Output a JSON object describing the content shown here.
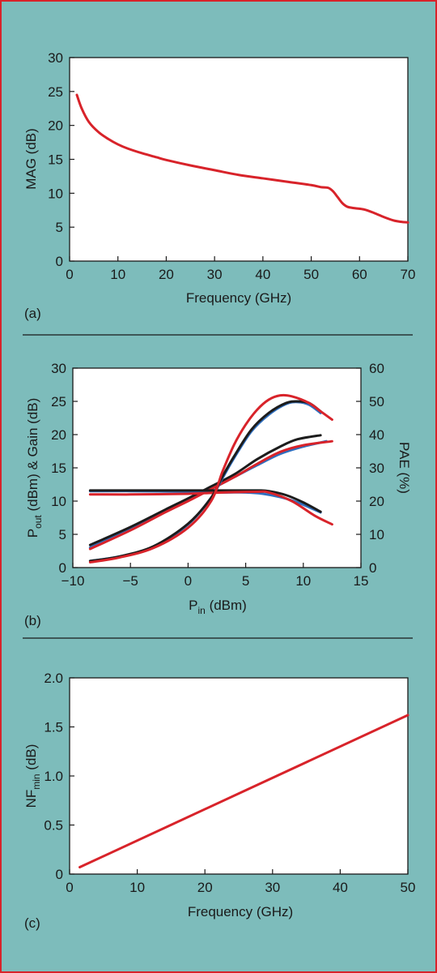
{
  "colors": {
    "background": "#7dbcbb",
    "frame": "#d8232a",
    "red": "#d8232a",
    "black": "#1c1c1c",
    "blue": "#2f6fbf",
    "plot_bg": "#ffffff"
  },
  "chart_data": [
    {
      "id": "a",
      "type": "line",
      "panel_label": "(a)",
      "xlabel": "Frequency (GHz)",
      "ylabel": "MAG (dB)",
      "xlim": [
        0,
        70
      ],
      "ylim": [
        0,
        30
      ],
      "xticks": [
        "0",
        "10",
        "20",
        "30",
        "40",
        "50",
        "60",
        "70"
      ],
      "yticks": [
        "0",
        "5",
        "10",
        "15",
        "20",
        "25",
        "30"
      ],
      "grid": false,
      "series": [
        {
          "color": "red",
          "points": [
            [
              1.5,
              24.5
            ],
            [
              2.5,
              22.5
            ],
            [
              4,
              20.5
            ],
            [
              6,
              19
            ],
            [
              8,
              18
            ],
            [
              10,
              17.2
            ],
            [
              12,
              16.6
            ],
            [
              15,
              15.9
            ],
            [
              18,
              15.3
            ],
            [
              20,
              14.9
            ],
            [
              25,
              14.1
            ],
            [
              30,
              13.4
            ],
            [
              35,
              12.7
            ],
            [
              40,
              12.2
            ],
            [
              45,
              11.7
            ],
            [
              50,
              11.2
            ],
            [
              52,
              10.9
            ],
            [
              53.5,
              10.8
            ],
            [
              54.5,
              10.3
            ],
            [
              55.5,
              9.4
            ],
            [
              56.5,
              8.5
            ],
            [
              57.5,
              8.0
            ],
            [
              59,
              7.8
            ],
            [
              61,
              7.6
            ],
            [
              63,
              7.1
            ],
            [
              65,
              6.5
            ],
            [
              67,
              6.0
            ],
            [
              68.5,
              5.8
            ],
            [
              70,
              5.7
            ]
          ]
        }
      ]
    },
    {
      "id": "b",
      "type": "line",
      "panel_label": "(b)",
      "xlabel_main": "P",
      "xlabel_sub": "in",
      "xlabel_rest": " (dBm)",
      "ylabel_parts": [
        "P",
        "out",
        " (dBm) & Gain (dB)"
      ],
      "y2label": "PAE (%)",
      "xlim": [
        -10,
        15
      ],
      "ylim": [
        0,
        30
      ],
      "y2lim": [
        0,
        60
      ],
      "xticks": [
        "−10",
        "−5",
        "0",
        "5",
        "10",
        "15"
      ],
      "yticks": [
        "0",
        "5",
        "10",
        "15",
        "20",
        "25",
        "30"
      ],
      "y2ticks": [
        "0",
        "10",
        "20",
        "30",
        "40",
        "50",
        "60"
      ],
      "grid": false,
      "series": [
        {
          "color": "blue",
          "group": "pout",
          "points": [
            [
              -8.5,
              3.0
            ],
            [
              -5,
              5.8
            ],
            [
              -2,
              8.4
            ],
            [
              0,
              10.1
            ],
            [
              2,
              11.8
            ],
            [
              4,
              13.6
            ],
            [
              6,
              15.4
            ],
            [
              8,
              17.1
            ],
            [
              10,
              18.2
            ],
            [
              12,
              19.0
            ]
          ]
        },
        {
          "color": "black",
          "group": "pout",
          "points": [
            [
              -8.5,
              3.4
            ],
            [
              -5,
              6.1
            ],
            [
              -2,
              8.7
            ],
            [
              0,
              10.4
            ],
            [
              2,
              12.2
            ],
            [
              4,
              14.0
            ],
            [
              6,
              16.3
            ],
            [
              8,
              18.2
            ],
            [
              9.5,
              19.3
            ],
            [
              11.5,
              19.9
            ]
          ]
        },
        {
          "color": "red",
          "group": "pout",
          "points": [
            [
              -8.5,
              2.8
            ],
            [
              -5,
              5.6
            ],
            [
              -2,
              8.3
            ],
            [
              0,
              10.0
            ],
            [
              2,
              11.8
            ],
            [
              4,
              13.6
            ],
            [
              6,
              15.6
            ],
            [
              8,
              17.4
            ],
            [
              10,
              18.4
            ],
            [
              12.5,
              19.0
            ]
          ]
        },
        {
          "color": "blue",
          "group": "gain",
          "points": [
            [
              -8.5,
              11.5
            ],
            [
              -5,
              11.5
            ],
            [
              0,
              11.4
            ],
            [
              3,
              11.3
            ],
            [
              5,
              11.3
            ],
            [
              6.5,
              11.1
            ],
            [
              8,
              10.6
            ],
            [
              9.5,
              9.8
            ],
            [
              11.5,
              8.3
            ]
          ]
        },
        {
          "color": "black",
          "group": "gain",
          "points": [
            [
              -8.5,
              11.6
            ],
            [
              -5,
              11.6
            ],
            [
              0,
              11.6
            ],
            [
              3,
              11.6
            ],
            [
              6,
              11.6
            ],
            [
              7,
              11.5
            ],
            [
              8.5,
              10.9
            ],
            [
              10,
              9.8
            ],
            [
              11.5,
              8.4
            ]
          ]
        },
        {
          "color": "red",
          "group": "gain",
          "points": [
            [
              -8.5,
              11.0
            ],
            [
              -5,
              11.0
            ],
            [
              0,
              11.1
            ],
            [
              3,
              11.3
            ],
            [
              6,
              11.4
            ],
            [
              7,
              11.3
            ],
            [
              9,
              10.0
            ],
            [
              11,
              7.8
            ],
            [
              12.5,
              6.5
            ]
          ]
        },
        {
          "color": "blue",
          "group": "pae",
          "y2": true,
          "points": [
            [
              -8.5,
              2
            ],
            [
              -6,
              3.3
            ],
            [
              -3,
              6.2
            ],
            [
              0,
              13
            ],
            [
              2,
              21
            ],
            [
              3,
              27
            ],
            [
              4,
              33
            ],
            [
              5.5,
              41
            ],
            [
              7,
              46
            ],
            [
              8.5,
              49.2
            ],
            [
              9.5,
              49.8
            ],
            [
              10.5,
              49
            ],
            [
              11.5,
              46.5
            ]
          ]
        },
        {
          "color": "black",
          "group": "pae",
          "y2": true,
          "points": [
            [
              -8.5,
              2
            ],
            [
              -6,
              3.3
            ],
            [
              -3,
              6.4
            ],
            [
              0,
              13.2
            ],
            [
              2,
              21
            ],
            [
              3,
              27.5
            ],
            [
              4,
              33.5
            ],
            [
              5.5,
              41.5
            ],
            [
              7,
              46.5
            ],
            [
              8.5,
              49.5
            ],
            [
              9.5,
              50
            ],
            [
              10.5,
              49.5
            ],
            [
              11.5,
              47
            ]
          ]
        },
        {
          "color": "red",
          "group": "pae",
          "y2": true,
          "points": [
            [
              -8.5,
              1.6
            ],
            [
              -6,
              3.0
            ],
            [
              -3,
              5.9
            ],
            [
              0,
              12
            ],
            [
              2,
              20
            ],
            [
              3,
              29
            ],
            [
              4,
              37
            ],
            [
              5,
              43
            ],
            [
              6,
              47.5
            ],
            [
              7,
              50.5
            ],
            [
              8,
              51.8
            ],
            [
              9,
              51.5
            ],
            [
              10.5,
              49.5
            ],
            [
              11.5,
              47
            ],
            [
              12.5,
              44.5
            ]
          ]
        }
      ]
    },
    {
      "id": "c",
      "type": "line",
      "panel_label": "(c)",
      "xlabel": "Frequency (GHz)",
      "ylabel_parts": [
        "NF",
        "min",
        " (dB)"
      ],
      "xlim": [
        0,
        50
      ],
      "ylim": [
        0,
        2.0
      ],
      "xticks": [
        "0",
        "10",
        "20",
        "30",
        "40",
        "50"
      ],
      "yticks": [
        "0",
        "0.5",
        "1.0",
        "1.5",
        "2.0"
      ],
      "grid": false,
      "series": [
        {
          "color": "red",
          "points": [
            [
              1.5,
              0.07
            ],
            [
              50,
              1.62
            ]
          ]
        }
      ]
    }
  ]
}
